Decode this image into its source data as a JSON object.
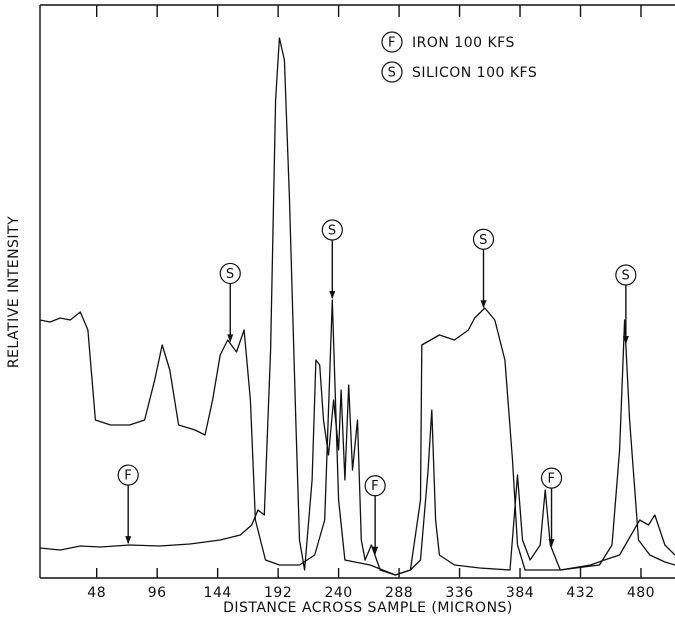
{
  "chart_data": {
    "type": "line",
    "xlabel": "DISTANCE ACROSS SAMPLE (MICRONS)",
    "ylabel": "RELATIVE INTENSITY",
    "xlim": [
      3,
      507
    ],
    "ylim": [
      0,
      573
    ],
    "xticks": [
      48,
      96,
      144,
      192,
      240,
      288,
      336,
      384,
      432,
      480
    ],
    "series": [
      {
        "name": "IRON 100 KFS",
        "symbol": "F",
        "color": "#111111",
        "x": [
          3,
          19,
          35,
          51,
          74,
          98,
          122,
          146,
          162,
          171,
          176,
          181,
          186,
          190,
          193,
          197,
          201,
          206,
          209,
          213,
          219,
          222,
          225,
          228,
          232,
          236,
          240,
          242,
          245,
          248,
          251,
          255,
          258,
          261,
          266,
          273,
          285,
          297,
          305,
          311,
          314,
          317,
          320,
          332,
          352,
          376,
          382,
          386,
          392,
          400,
          404,
          408,
          416,
          440,
          451,
          463,
          479,
          486,
          491,
          499,
          507
        ],
        "values": [
          30,
          28,
          32,
          31,
          33,
          32,
          34,
          38,
          43,
          53,
          68,
          63,
          228,
          478,
          540,
          518,
          378,
          158,
          38,
          8,
          98,
          218,
          213,
          158,
          123,
          178,
          128,
          188,
          98,
          193,
          108,
          158,
          38,
          18,
          33,
          8,
          3,
          8,
          18,
          108,
          168,
          58,
          23,
          13,
          10,
          8,
          103,
          38,
          18,
          33,
          88,
          33,
          8,
          13,
          18,
          23,
          58,
          53,
          63,
          33,
          23
        ]
      },
      {
        "name": "SILICON 100 KFS",
        "symbol": "S",
        "color": "#111111",
        "x": [
          3,
          11,
          19,
          27,
          35,
          41,
          47,
          59,
          74,
          86,
          94,
          100,
          106,
          113,
          126,
          134,
          140,
          146,
          152,
          159,
          165,
          170,
          174,
          182,
          193,
          209,
          221,
          229,
          235,
          240,
          245,
          265,
          285,
          297,
          305,
          306,
          320,
          332,
          343,
          348,
          356,
          364,
          372,
          378,
          382,
          388,
          416,
          447,
          457,
          463,
          467,
          471,
          478,
          487,
          499,
          507
        ],
        "values": [
          258,
          256,
          260,
          258,
          266,
          248,
          158,
          153,
          153,
          158,
          198,
          233,
          208,
          153,
          148,
          143,
          178,
          223,
          238,
          226,
          248,
          178,
          58,
          18,
          13,
          13,
          23,
          58,
          278,
          78,
          18,
          13,
          3,
          8,
          78,
          233,
          243,
          238,
          248,
          260,
          270,
          258,
          218,
          118,
          33,
          8,
          8,
          13,
          33,
          128,
          258,
          158,
          38,
          23,
          16,
          13
        ]
      }
    ],
    "annotations": [
      {
        "text": "F",
        "x": 73
      },
      {
        "text": "S",
        "x": 154
      },
      {
        "text": "S",
        "x": 235
      },
      {
        "text": "F",
        "x": 269
      },
      {
        "text": "S",
        "x": 355
      },
      {
        "text": "F",
        "x": 409
      },
      {
        "text": "S",
        "x": 468
      }
    ]
  }
}
